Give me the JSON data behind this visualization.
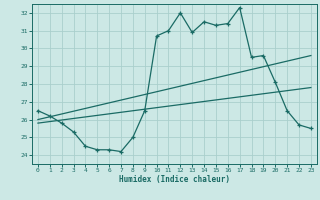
{
  "xlabel": "Humidex (Indice chaleur)",
  "bg_color": "#cce8e5",
  "grid_color": "#aacfcc",
  "line_color": "#1a6b65",
  "xlim": [
    -0.5,
    23.5
  ],
  "ylim": [
    23.5,
    32.5
  ],
  "xticks": [
    0,
    1,
    2,
    3,
    4,
    5,
    6,
    7,
    8,
    9,
    10,
    11,
    12,
    13,
    14,
    15,
    16,
    17,
    18,
    19,
    20,
    21,
    22,
    23
  ],
  "yticks": [
    24,
    25,
    26,
    27,
    28,
    29,
    30,
    31,
    32
  ],
  "main_line_x": [
    0,
    1,
    2,
    3,
    4,
    5,
    6,
    7,
    8,
    9,
    10,
    11,
    12,
    13,
    14,
    15,
    16,
    17,
    18,
    19,
    20,
    21,
    22,
    23
  ],
  "main_line_y": [
    26.5,
    26.2,
    25.8,
    25.3,
    24.5,
    24.3,
    24.3,
    24.2,
    25.0,
    26.5,
    30.7,
    31.0,
    32.0,
    30.9,
    31.5,
    31.3,
    31.4,
    32.3,
    29.5,
    29.6,
    28.1,
    26.5,
    25.7,
    25.5
  ],
  "trend_line1_x": [
    0,
    23
  ],
  "trend_line1_y": [
    26.0,
    29.6
  ],
  "trend_line2_x": [
    0,
    23
  ],
  "trend_line2_y": [
    25.8,
    27.8
  ]
}
